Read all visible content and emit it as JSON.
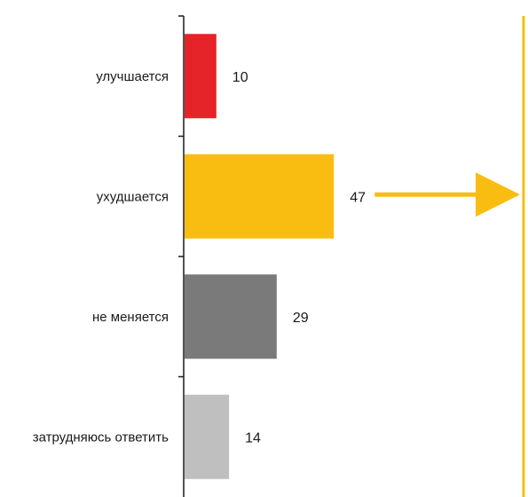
{
  "chart_data": {
    "type": "bar",
    "orientation": "horizontal",
    "categories": [
      "улучшается",
      "ухудшается",
      "не меняется",
      "затрудняюсь ответить"
    ],
    "values": [
      10,
      47,
      29,
      14
    ],
    "colors": [
      "#e42428",
      "#f9bd12",
      "#7a7a7a",
      "#bfbfbf"
    ],
    "xlim": [
      0,
      100
    ],
    "title": "",
    "xlabel": "",
    "ylabel": "",
    "grid": false,
    "legend": "none",
    "annotations": [
      {
        "type": "arrow",
        "from_category": "ухудшается",
        "color": "#f9bd12"
      },
      {
        "type": "vertical-line",
        "color": "#f9bd12"
      }
    ]
  }
}
